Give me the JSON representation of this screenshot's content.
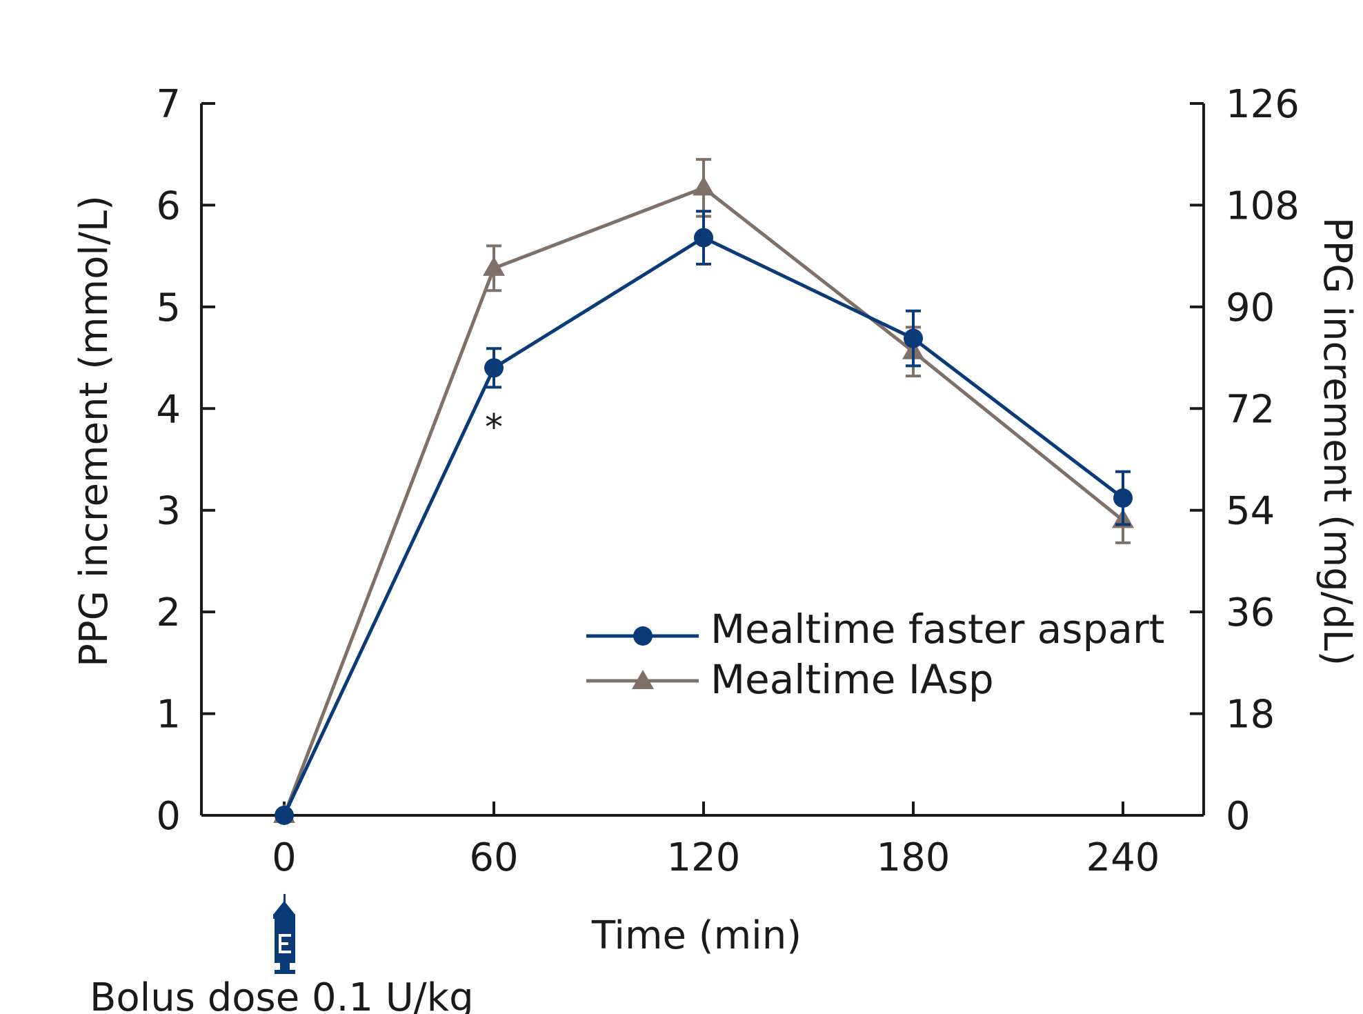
{
  "chart_data": {
    "type": "line",
    "title": "",
    "xlabel": "Time (min)",
    "ylabel": "PPG increment (mmol/L)",
    "ylabel_right": "PPG increment (mg/dL)",
    "x": [
      0,
      60,
      120,
      180,
      240
    ],
    "x_ticks": [
      "0",
      "60",
      "120",
      "180",
      "240"
    ],
    "xlim": [
      -25,
      265
    ],
    "ylim": [
      0,
      7
    ],
    "y_ticks": [
      "0",
      "1",
      "2",
      "3",
      "4",
      "5",
      "6",
      "7"
    ],
    "ylim_right": [
      0,
      126
    ],
    "y_ticks_right": [
      "0",
      "18",
      "36",
      "54",
      "72",
      "90",
      "108",
      "126"
    ],
    "grid": false,
    "legend_position": "center-right",
    "series": [
      {
        "name": "Mealtime faster aspart",
        "color": "#0b3a78",
        "marker": "circle",
        "values": [
          0,
          4.4,
          5.68,
          4.69,
          3.12
        ],
        "error": [
          0,
          0.19,
          0.26,
          0.27,
          0.26
        ]
      },
      {
        "name": "Mealtime IAsp",
        "color": "#7f7168",
        "marker": "triangle",
        "values": [
          0,
          5.38,
          6.17,
          4.56,
          2.9
        ],
        "error": [
          0,
          0.22,
          0.28,
          0.24,
          0.22
        ]
      }
    ],
    "annotations": [
      {
        "text": "*",
        "x": 60,
        "y": 3.9
      }
    ],
    "dose_marker": {
      "x": 0,
      "icon": "syringe-icon",
      "label": "Bolus dose 0.1 U/kg",
      "color": "#0b3a78"
    }
  }
}
